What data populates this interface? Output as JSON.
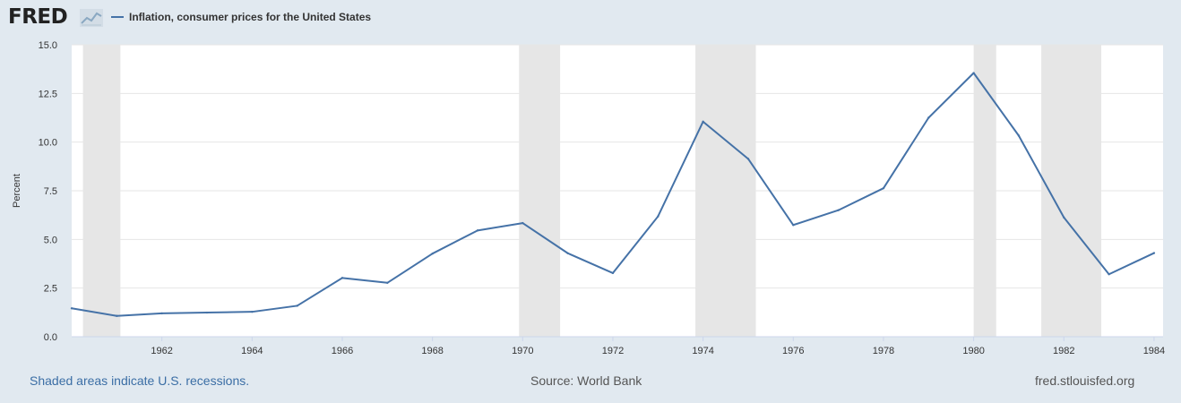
{
  "header": {
    "logo_text": "FRED",
    "logo_icon": "chart-line-icon"
  },
  "legend": {
    "label": "Inflation, consumer prices for the United States"
  },
  "colors": {
    "series": "#4572a7",
    "recession": "#e6e6e6",
    "plot_bg": "#ffffff",
    "page_bg": "#e1e9f0",
    "grid": "#e6e6e6"
  },
  "footer": {
    "recession_note": "Shaded areas indicate U.S. recessions.",
    "source": "Source: World Bank",
    "site": "fred.stlouisfed.org"
  },
  "chart_data": {
    "type": "line",
    "title": "",
    "xlabel": "",
    "ylabel": "Percent",
    "xlim": [
      1960,
      1984.2
    ],
    "ylim": [
      0,
      15
    ],
    "y_ticks": [
      "0.0",
      "2.5",
      "5.0",
      "7.5",
      "10.0",
      "12.5",
      "15.0"
    ],
    "x_ticks": [
      "1962",
      "1964",
      "1966",
      "1968",
      "1970",
      "1972",
      "1974",
      "1976",
      "1978",
      "1980",
      "1982",
      "1984"
    ],
    "grid": true,
    "legend_position": "top-left",
    "recessions": [
      [
        1960.25,
        1961.08
      ],
      [
        1969.92,
        1970.83
      ],
      [
        1973.83,
        1975.17
      ],
      [
        1980.0,
        1980.5
      ],
      [
        1981.5,
        1982.83
      ]
    ],
    "series": [
      {
        "name": "Inflation, consumer prices for the United States",
        "x": [
          1960,
          1961,
          1962,
          1963,
          1964,
          1965,
          1966,
          1967,
          1968,
          1969,
          1970,
          1971,
          1972,
          1973,
          1974,
          1975,
          1976,
          1977,
          1978,
          1979,
          1980,
          1981,
          1982,
          1983,
          1984
        ],
        "values": [
          1.46,
          1.07,
          1.2,
          1.24,
          1.28,
          1.59,
          3.02,
          2.77,
          4.27,
          5.46,
          5.84,
          4.29,
          3.27,
          6.18,
          11.05,
          9.14,
          5.74,
          6.5,
          7.63,
          11.25,
          13.55,
          10.33,
          6.13,
          3.21,
          4.3
        ]
      }
    ]
  }
}
